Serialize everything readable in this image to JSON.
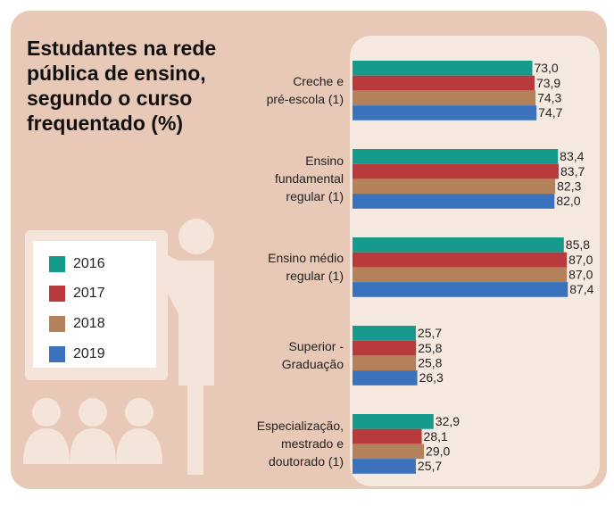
{
  "chart_data": {
    "type": "hbar",
    "title": "Estudantes na rede pública de ensino, segundo o curso frequentado (%)",
    "categories": [
      "Creche e\npré-escola (1)",
      "Ensino\nfundamental\nregular (1)",
      "Ensino médio\nregular (1)",
      "Superior -\nGraduação",
      "Especialização,\nmestrado e\ndoutorado (1)"
    ],
    "series": [
      {
        "name": "2016",
        "color": "#159a8b",
        "values": [
          73.0,
          83.4,
          85.8,
          25.7,
          32.9
        ],
        "value_labels": [
          "73,0",
          "83,4",
          "85,8",
          "25,7",
          "32,9"
        ]
      },
      {
        "name": "2017",
        "color": "#b83a3c",
        "values": [
          73.9,
          83.7,
          87.0,
          25.8,
          28.1
        ],
        "value_labels": [
          "73,9",
          "83,7",
          "87,0",
          "25,8",
          "28,1"
        ]
      },
      {
        "name": "2018",
        "color": "#b4825a",
        "values": [
          74.3,
          82.3,
          87.0,
          25.8,
          29.0
        ],
        "value_labels": [
          "74,3",
          "82,3",
          "87,0",
          "25,8",
          "29,0"
        ]
      },
      {
        "name": "2019",
        "color": "#3a72bc",
        "values": [
          74.7,
          82.0,
          87.4,
          26.3,
          25.7
        ],
        "value_labels": [
          "74,7",
          "82,0",
          "87,4",
          "26,3",
          "25,7"
        ]
      }
    ]
  }
}
